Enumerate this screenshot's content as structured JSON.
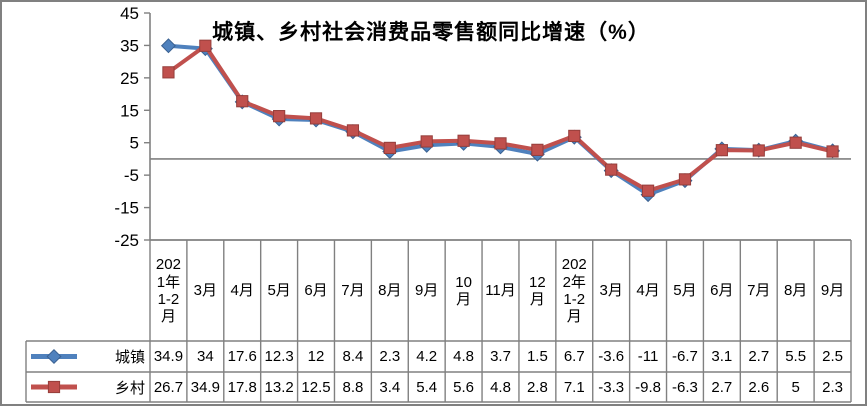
{
  "window": {
    "background": "#FFFFFF",
    "border_color": "#808080"
  },
  "chart_data": {
    "type": "line",
    "title": "城镇、乡村社会消费品零售额同比增速（%）",
    "categories": [
      "2021年1-2月",
      "3月",
      "4月",
      "5月",
      "6月",
      "7月",
      "8月",
      "9月",
      "10月",
      "11月",
      "12月",
      "2022年1-2月",
      "3月",
      "4月",
      "5月",
      "6月",
      "7月",
      "8月",
      "9月"
    ],
    "series": [
      {
        "name": "城镇",
        "marker": "diamond",
        "color": "#4F81BD",
        "marker_edge": "#3A6191",
        "values": [
          34.9,
          34,
          17.6,
          12.3,
          12,
          8.4,
          2.3,
          4.2,
          4.8,
          3.7,
          1.5,
          6.7,
          -3.6,
          -11,
          -6.7,
          3.1,
          2.7,
          5.5,
          2.5
        ]
      },
      {
        "name": "乡村",
        "marker": "square",
        "color": "#C0504D",
        "marker_edge": "#953E3B",
        "values": [
          26.7,
          34.9,
          17.8,
          13.2,
          12.5,
          8.8,
          3.4,
          5.4,
          5.6,
          4.8,
          2.8,
          7.1,
          -3.3,
          -9.8,
          -6.3,
          2.7,
          2.6,
          5,
          2.3
        ]
      }
    ],
    "ylim": [
      -25,
      45
    ],
    "yticks": [
      45,
      35,
      25,
      15,
      5,
      -5,
      -15,
      -25
    ],
    "axis_color": "#808080",
    "zero_line": true,
    "grid": "none",
    "legend_position": "left-of-data-table",
    "data_table_shown": true
  }
}
